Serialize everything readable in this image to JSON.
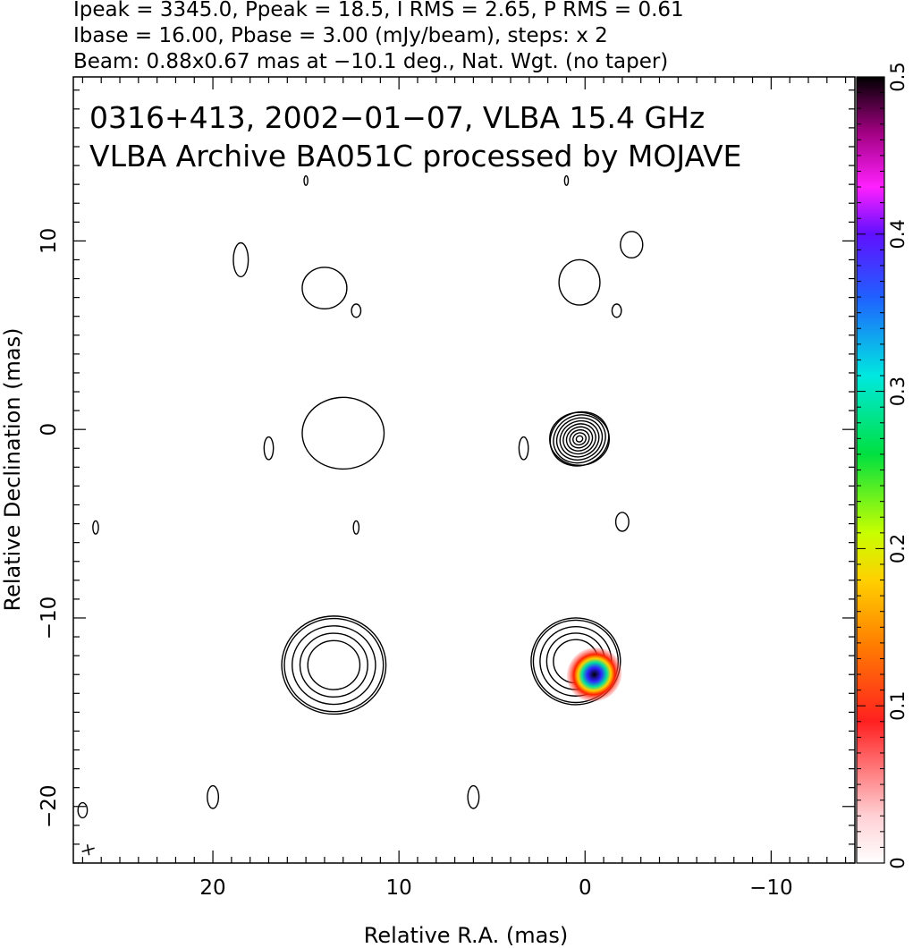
{
  "header_lines": [
    "Ipeak = 3345.0, Ppeak = 18.5, I RMS = 2.65, P RMS = 0.61",
    "Ibase = 16.00, Pbase = 3.00 (mJy/beam), steps: x 2",
    "Beam: 0.88x0.67 mas at −10.1 deg., Nat. Wgt. (no taper)"
  ],
  "chart_data": {
    "type": "heatmap",
    "title_lines": [
      "0316+413, 2002−01−07, VLBA 15.4 GHz",
      "VLBA Archive BA051C processed by MOJAVE"
    ],
    "xlabel": "Relative R.A. (mas)",
    "ylabel": "Relative Declination (mas)",
    "xlim": [
      27.5,
      -14.5
    ],
    "ylim": [
      -23,
      18.7
    ],
    "x_ticks": [
      {
        "value": 20,
        "label": "20"
      },
      {
        "value": 10,
        "label": "10"
      },
      {
        "value": 0,
        "label": "0"
      },
      {
        "value": -10,
        "label": "−10"
      }
    ],
    "y_ticks": [
      {
        "value": 10,
        "label": "10"
      },
      {
        "value": 0,
        "label": "0"
      },
      {
        "value": -10,
        "label": "−10"
      },
      {
        "value": -20,
        "label": "−20"
      }
    ],
    "colorbar": {
      "range": [
        0,
        0.5
      ],
      "ticks": [
        {
          "value": 0,
          "label": "0"
        },
        {
          "value": 0.1,
          "label": "0.1"
        },
        {
          "value": 0.2,
          "label": "0.2"
        },
        {
          "value": 0.3,
          "label": "0.3"
        },
        {
          "value": 0.4,
          "label": "0.4"
        },
        {
          "value": 0.5,
          "label": "0.5"
        }
      ]
    },
    "contour_blobs": [
      {
        "cx": 13.0,
        "cy": -0.2,
        "rx": 2.2,
        "ry": 1.9
      },
      {
        "cx": 0.3,
        "cy": -0.5,
        "rx": 1.6,
        "ry": 1.4
      },
      {
        "cx": 14.0,
        "cy": 7.5,
        "rx": 1.2,
        "ry": 1.1
      },
      {
        "cx": 0.3,
        "cy": 7.8,
        "rx": 1.1,
        "ry": 1.2
      },
      {
        "cx": -2.5,
        "cy": 9.8,
        "rx": 0.6,
        "ry": 0.7
      },
      {
        "cx": 18.5,
        "cy": 9.0,
        "rx": 0.4,
        "ry": 0.9
      },
      {
        "cx": 13.5,
        "cy": -12.5,
        "rx": 2.8,
        "ry": 2.6
      },
      {
        "cx": 0.5,
        "cy": -12.3,
        "rx": 2.4,
        "ry": 2.3
      },
      {
        "cx": 20.0,
        "cy": -19.5,
        "rx": 0.3,
        "ry": 0.6
      },
      {
        "cx": 6.0,
        "cy": -19.5,
        "rx": 0.3,
        "ry": 0.6
      },
      {
        "cx": 17.0,
        "cy": -1.0,
        "rx": 0.25,
        "ry": 0.6
      },
      {
        "cx": 3.3,
        "cy": -1.0,
        "rx": 0.25,
        "ry": 0.6
      },
      {
        "cx": -2.0,
        "cy": -4.9,
        "rx": 0.35,
        "ry": 0.5
      },
      {
        "cx": 26.3,
        "cy": -5.2,
        "rx": 0.15,
        "ry": 0.35
      },
      {
        "cx": 12.3,
        "cy": -5.2,
        "rx": 0.15,
        "ry": 0.35
      },
      {
        "cx": 27.0,
        "cy": -20.2,
        "rx": 0.25,
        "ry": 0.4
      },
      {
        "cx": 15.0,
        "cy": 13.2,
        "rx": 0.1,
        "ry": 0.25
      },
      {
        "cx": 1.0,
        "cy": 13.2,
        "rx": 0.1,
        "ry": 0.25
      },
      {
        "cx": 12.3,
        "cy": 6.3,
        "rx": 0.25,
        "ry": 0.35
      },
      {
        "cx": -1.7,
        "cy": 6.3,
        "rx": 0.25,
        "ry": 0.35
      }
    ],
    "core_contours": {
      "cx": 0.3,
      "cy": -0.5,
      "count": 9,
      "rx_max": 1.6,
      "ry_max": 1.4
    },
    "polarization_patch": {
      "cx": -0.5,
      "cy": -13.0,
      "rx": 1.5,
      "ry": 1.4
    },
    "beam_marker": {
      "x": 26.7,
      "y": -22.3
    }
  }
}
